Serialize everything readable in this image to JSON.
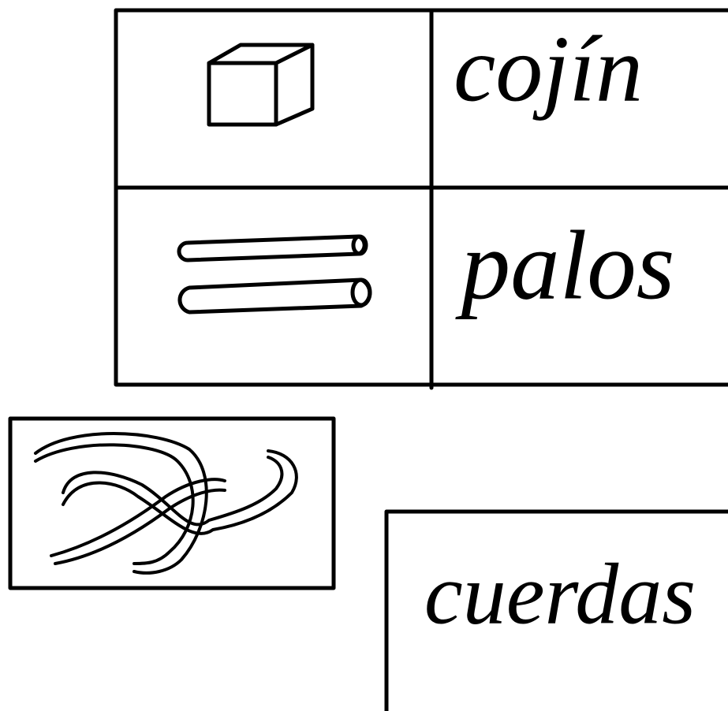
{
  "cards": [
    {
      "label": "cojín"
    },
    {
      "label": "palos"
    },
    {
      "label": "cuerdas"
    }
  ]
}
